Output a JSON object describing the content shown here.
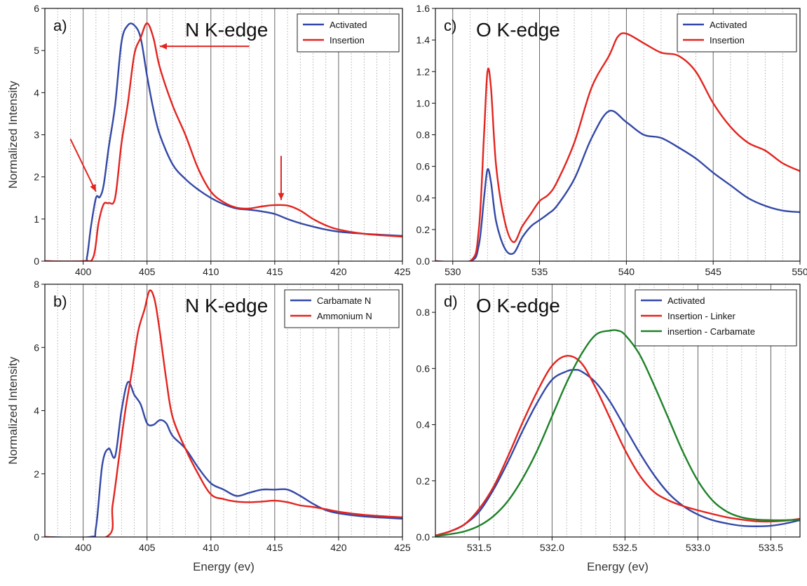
{
  "chart_data": [
    {
      "type": "line",
      "panel_label": "a)",
      "title": "N K-edge",
      "xlabel": "",
      "ylabel": "Normalized Intensity",
      "xlim": [
        397,
        425
      ],
      "ylim": [
        0,
        6
      ],
      "xticks": [
        400,
        405,
        410,
        415,
        420,
        425
      ],
      "yticks": [
        0,
        1,
        2,
        3,
        4,
        5,
        6
      ],
      "grid": "vertical dotted every 1 eV, solid every 5 eV",
      "legend": "top-right",
      "series": [
        {
          "name": "Activated",
          "color": "#3348a6",
          "x": [
            397,
            400,
            400.3,
            400.6,
            401,
            401.3,
            401.6,
            402,
            402.5,
            403,
            403.5,
            404,
            404.5,
            405,
            405.5,
            406,
            407,
            408,
            409,
            410,
            411,
            412,
            413,
            414,
            415,
            416,
            417,
            418,
            419,
            420,
            422,
            425
          ],
          "y": [
            0,
            0,
            0.1,
            0.8,
            1.5,
            1.52,
            1.8,
            2.7,
            3.7,
            5.2,
            5.6,
            5.6,
            5.3,
            4.4,
            3.6,
            3.0,
            2.3,
            1.95,
            1.7,
            1.5,
            1.35,
            1.25,
            1.22,
            1.18,
            1.12,
            1.0,
            0.9,
            0.82,
            0.75,
            0.7,
            0.65,
            0.6
          ]
        },
        {
          "name": "Insertion",
          "color": "#e3241f",
          "x": [
            397,
            400,
            400.8,
            401.2,
            401.6,
            402,
            402.5,
            403,
            403.5,
            404,
            404.5,
            405,
            405.5,
            406,
            407,
            408,
            409,
            410,
            411,
            412,
            413,
            414,
            415,
            416,
            417,
            418,
            419,
            420,
            422,
            425
          ],
          "y": [
            0,
            0,
            0.1,
            0.9,
            1.35,
            1.38,
            1.5,
            2.8,
            3.75,
            4.9,
            5.3,
            5.65,
            5.3,
            4.6,
            3.7,
            3.0,
            2.2,
            1.65,
            1.4,
            1.27,
            1.25,
            1.3,
            1.33,
            1.32,
            1.2,
            1.0,
            0.85,
            0.75,
            0.65,
            0.58
          ]
        }
      ]
    },
    {
      "type": "line",
      "panel_label": "c)",
      "title": "O K-edge",
      "xlabel": "",
      "ylabel": "",
      "xlim": [
        529,
        550
      ],
      "ylim": [
        0,
        1.6
      ],
      "xticks": [
        530,
        535,
        540,
        545,
        550
      ],
      "yticks": [
        0.0,
        0.2,
        0.4,
        0.6,
        0.8,
        1.0,
        1.2,
        1.4,
        1.6
      ],
      "grid": "vertical dotted every 1 eV, solid every 5 eV",
      "legend": "top-right",
      "series": [
        {
          "name": "Activated",
          "color": "#3348a6",
          "x": [
            529,
            531,
            531.5,
            531.8,
            532,
            532.2,
            532.5,
            533,
            533.5,
            534,
            534.5,
            535,
            535.5,
            536,
            537,
            538,
            539,
            540,
            541,
            542,
            543,
            544,
            545,
            546,
            547,
            548,
            549,
            550
          ],
          "y": [
            0,
            0,
            0.1,
            0.4,
            0.58,
            0.5,
            0.25,
            0.08,
            0.05,
            0.15,
            0.22,
            0.26,
            0.3,
            0.35,
            0.52,
            0.78,
            0.95,
            0.88,
            0.8,
            0.78,
            0.72,
            0.65,
            0.56,
            0.48,
            0.4,
            0.35,
            0.32,
            0.31
          ]
        },
        {
          "name": "Insertion",
          "color": "#e3241f",
          "x": [
            529,
            531,
            531.5,
            531.8,
            532,
            532.2,
            532.5,
            533,
            533.5,
            534,
            534.5,
            535,
            535.5,
            536,
            537,
            538,
            539,
            539.5,
            540,
            541,
            542,
            543,
            544,
            545,
            546,
            547,
            548,
            549,
            550
          ],
          "y": [
            0,
            0,
            0.2,
            0.8,
            1.2,
            1.1,
            0.6,
            0.25,
            0.12,
            0.22,
            0.3,
            0.38,
            0.42,
            0.5,
            0.75,
            1.1,
            1.3,
            1.42,
            1.44,
            1.38,
            1.32,
            1.3,
            1.2,
            1.0,
            0.85,
            0.75,
            0.7,
            0.62,
            0.57
          ]
        }
      ]
    },
    {
      "type": "line",
      "panel_label": "b)",
      "title": "N K-edge",
      "xlabel": "Energy (ev)",
      "ylabel": "Normalized Intensity",
      "xlim": [
        397,
        425
      ],
      "ylim": [
        0,
        8
      ],
      "xticks": [
        400,
        405,
        410,
        415,
        420,
        425
      ],
      "yticks": [
        0,
        2,
        4,
        6,
        8
      ],
      "grid": "vertical dotted every 1 eV, solid every 5 eV",
      "legend": "top-right",
      "series": [
        {
          "name": "Carbamate N",
          "color": "#3348a6",
          "x": [
            397,
            400.5,
            401,
            401.5,
            402,
            402.5,
            403,
            403.5,
            404,
            404.5,
            405,
            405.5,
            406,
            406.5,
            407,
            408,
            409,
            410,
            411,
            412,
            413,
            414,
            415,
            416,
            417,
            418,
            419,
            420,
            422,
            425
          ],
          "y": [
            0,
            0,
            0.3,
            2.3,
            2.8,
            2.55,
            4.0,
            4.9,
            4.5,
            4.2,
            3.6,
            3.55,
            3.7,
            3.6,
            3.2,
            2.8,
            2.2,
            1.7,
            1.5,
            1.3,
            1.4,
            1.5,
            1.5,
            1.5,
            1.3,
            1.05,
            0.85,
            0.75,
            0.65,
            0.58
          ]
        },
        {
          "name": "Ammonium N",
          "color": "#e3241f",
          "x": [
            397,
            401.8,
            402.3,
            402.8,
            403.3,
            403.8,
            404.3,
            404.8,
            405.2,
            405.6,
            406,
            406.5,
            407,
            408,
            409,
            410,
            411,
            412,
            413,
            414,
            415,
            416,
            417,
            418,
            419,
            420,
            422,
            425
          ],
          "y": [
            0,
            0,
            1.0,
            2.5,
            4.0,
            5.2,
            6.5,
            7.2,
            7.8,
            7.5,
            6.5,
            5.0,
            3.8,
            2.8,
            2.0,
            1.35,
            1.2,
            1.12,
            1.1,
            1.12,
            1.15,
            1.1,
            1.0,
            0.95,
            0.88,
            0.8,
            0.7,
            0.62
          ]
        }
      ]
    },
    {
      "type": "line",
      "panel_label": "d)",
      "title": "O K-edge",
      "xlabel": "Energy (ev)",
      "ylabel": "",
      "xlim": [
        531.2,
        533.7
      ],
      "ylim": [
        0,
        0.9
      ],
      "xticks": [
        531.5,
        532.0,
        532.5,
        533.0,
        533.5
      ],
      "yticks": [
        0.0,
        0.2,
        0.4,
        0.6,
        0.8
      ],
      "grid": "vertical dotted every 0.1 eV, solid every 0.5 eV",
      "legend": "top-right",
      "series": [
        {
          "name": "Activated",
          "color": "#3348a6",
          "x": [
            531.2,
            531.3,
            531.4,
            531.5,
            531.6,
            531.7,
            531.8,
            531.9,
            532.0,
            532.1,
            532.15,
            532.2,
            532.3,
            532.4,
            532.5,
            532.6,
            532.7,
            532.8,
            532.9,
            533.0,
            533.1,
            533.2,
            533.3,
            533.4,
            533.5,
            533.6,
            533.7
          ],
          "y": [
            0.005,
            0.02,
            0.045,
            0.09,
            0.17,
            0.27,
            0.38,
            0.48,
            0.56,
            0.59,
            0.595,
            0.59,
            0.55,
            0.48,
            0.39,
            0.3,
            0.22,
            0.155,
            0.11,
            0.08,
            0.06,
            0.048,
            0.04,
            0.038,
            0.04,
            0.048,
            0.06
          ]
        },
        {
          "name": "Insertion - Linker",
          "color": "#e3241f",
          "x": [
            531.2,
            531.3,
            531.4,
            531.5,
            531.6,
            531.7,
            531.8,
            531.9,
            532.0,
            532.1,
            532.2,
            532.3,
            532.4,
            532.5,
            532.6,
            532.7,
            532.8,
            532.9,
            533.0,
            533.1,
            533.2,
            533.3,
            533.4,
            533.5,
            533.6,
            533.7
          ],
          "y": [
            0.005,
            0.02,
            0.045,
            0.1,
            0.18,
            0.29,
            0.41,
            0.52,
            0.61,
            0.645,
            0.62,
            0.53,
            0.42,
            0.31,
            0.22,
            0.16,
            0.13,
            0.11,
            0.095,
            0.082,
            0.07,
            0.062,
            0.056,
            0.055,
            0.058,
            0.065
          ]
        },
        {
          "name": "insertion - Carbamate",
          "color": "#1e8228",
          "x": [
            531.2,
            531.3,
            531.4,
            531.5,
            531.6,
            531.7,
            531.8,
            531.9,
            532.0,
            532.1,
            532.2,
            532.3,
            532.4,
            532.45,
            532.5,
            532.6,
            532.7,
            532.8,
            532.9,
            533.0,
            533.1,
            533.2,
            533.3,
            533.4,
            533.5,
            533.6,
            533.7
          ],
          "y": [
            0.003,
            0.01,
            0.02,
            0.04,
            0.075,
            0.13,
            0.21,
            0.31,
            0.43,
            0.55,
            0.65,
            0.72,
            0.735,
            0.735,
            0.72,
            0.65,
            0.54,
            0.42,
            0.3,
            0.2,
            0.13,
            0.09,
            0.07,
            0.062,
            0.06,
            0.06,
            0.062
          ]
        }
      ]
    }
  ]
}
